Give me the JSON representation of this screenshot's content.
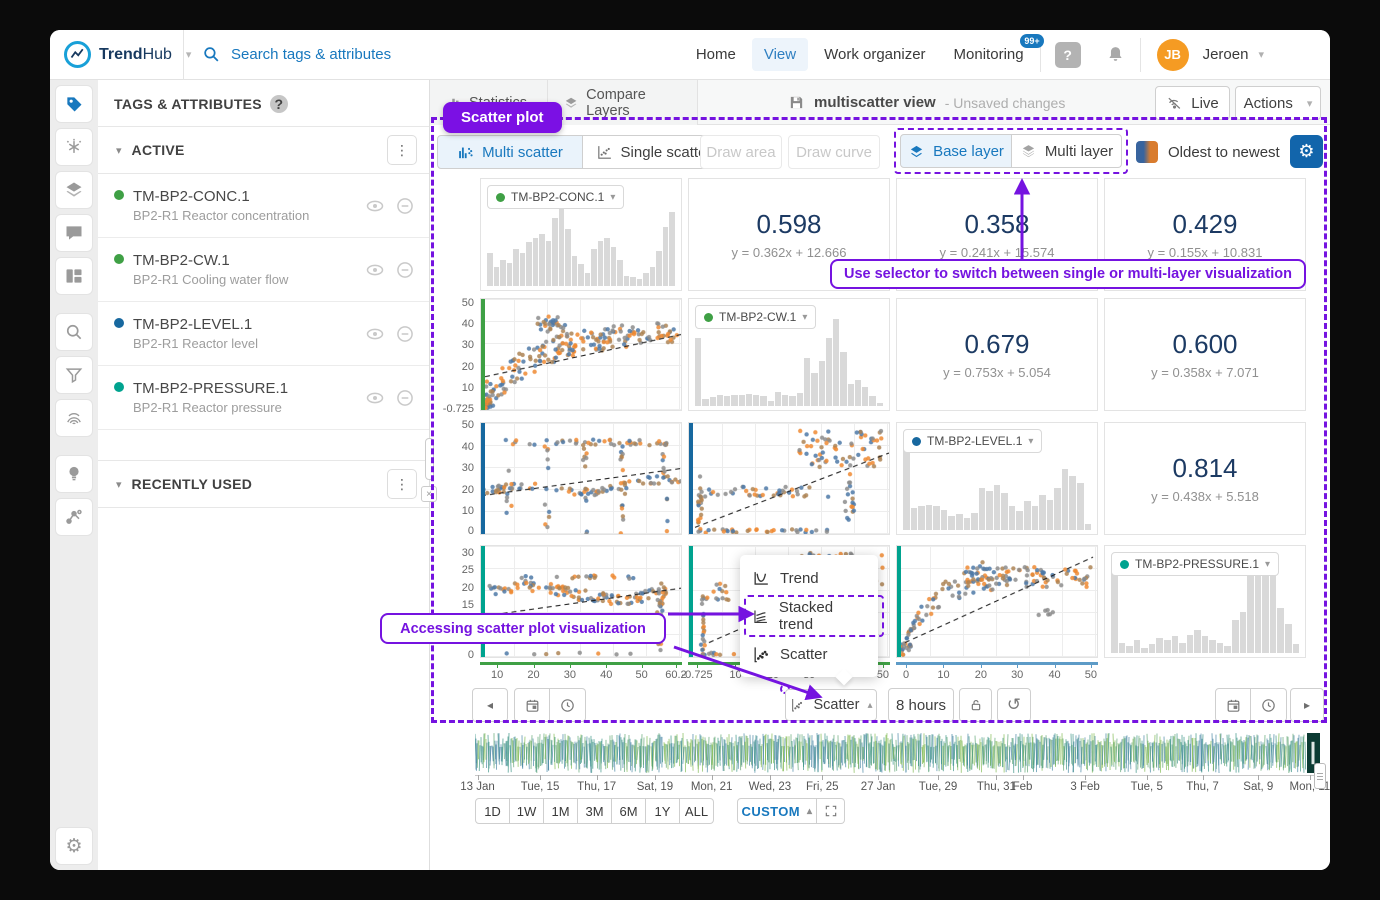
{
  "app": {
    "accent_blue": "#1878be",
    "accent_purple": "#7513e0",
    "navy": "#1c3a63"
  },
  "navbar": {
    "brand_bold": "Trend",
    "brand_light": "Hub",
    "search_placeholder": "Search tags & attributes",
    "nav_items": [
      {
        "label": "Home"
      },
      {
        "label": "View"
      },
      {
        "label": "Work organizer"
      },
      {
        "label": "Monitoring"
      }
    ],
    "monitoring_badge": "99+",
    "help_label": "?",
    "user_initials": "JB",
    "user_name": "Jeroen"
  },
  "sidebar": {
    "title": "TAGS & ATTRIBUTES",
    "active_label": "ACTIVE",
    "recent_label": "RECENTLY USED",
    "items": [
      {
        "name": "TM-BP2-CONC.1",
        "desc": "BP2-R1 Reactor concentration",
        "color": "#3fa045"
      },
      {
        "name": "TM-BP2-CW.1",
        "desc": "BP2-R1 Cooling water flow",
        "color": "#3fa045"
      },
      {
        "name": "TM-BP2-LEVEL.1",
        "desc": "BP2-R1 Reactor level",
        "color": "#17689f"
      },
      {
        "name": "TM-BP2-PRESSURE.1",
        "desc": "BP2-R1 Reactor pressure",
        "color": "#00a38f"
      }
    ]
  },
  "tabs": {
    "statistics": "Statistics",
    "compare_layers": "Compare Layers"
  },
  "view_header": {
    "title": "multiscatter view",
    "status": "- Unsaved changes",
    "live": "Live",
    "actions": "Actions"
  },
  "toolbar": {
    "multi_scatter": "Multi scatter",
    "single_scatter": "Single scatter",
    "draw_area": "Draw area",
    "draw_curve": "Draw curve",
    "base_layer": "Base layer",
    "multi_layer": "Multi layer",
    "sort_order": "Oldest to newest"
  },
  "annotations": {
    "badge": "Scatter plot",
    "selector_note": "Use selector to switch between single or multi-layer visualization",
    "access_note": "Accessing scatter plot visualization"
  },
  "viz_menu": {
    "trend": "Trend",
    "stacked_trend": "Stacked trend",
    "scatter": "Scatter"
  },
  "bottom_bar": {
    "viz_selected": "Scatter",
    "duration": "8 hours"
  },
  "timeline_dates": [
    "13 Jan",
    "Tue, 15",
    "Thu, 17",
    "Sat, 19",
    "Mon, 21",
    "Wed, 23",
    "Fri, 25",
    "27 Jan",
    "Tue, 29",
    "Thu, 31",
    "Feb",
    "3 Feb",
    "Tue, 5",
    "Thu, 7",
    "Sat, 9",
    "Mon, 11"
  ],
  "range_buttons": [
    "1D",
    "1W",
    "1M",
    "3M",
    "6M",
    "1Y",
    "ALL"
  ],
  "custom_label": "CUSTOM",
  "chart_data": {
    "type": "scatter-matrix",
    "tags": [
      "TM-BP2-CONC.1",
      "TM-BP2-CW.1",
      "TM-BP2-LEVEL.1",
      "TM-BP2-PRESSURE.1"
    ],
    "tag_colors": [
      "#3fa045",
      "#3fa045",
      "#17689f",
      "#00a38f"
    ],
    "point_colors": [
      "#ef8a33",
      "#4e79a7",
      "#8c8c8c",
      "#ad8455"
    ],
    "hist_color": "#d9d9d9",
    "layout": {
      "grid": "4x4",
      "diagonal": "histograms",
      "upper_triangle": "correlation values",
      "lower_triangle": "scatter plots"
    },
    "correlations": [
      {
        "y": "TM-BP2-CONC.1",
        "x": "TM-BP2-CW.1",
        "r": 0.598,
        "fit": "y = 0.362x + 12.666"
      },
      {
        "y": "TM-BP2-CONC.1",
        "x": "TM-BP2-LEVEL.1",
        "r": 0.358,
        "fit": "y = 0.241x + 15.574"
      },
      {
        "y": "TM-BP2-CONC.1",
        "x": "TM-BP2-PRESSURE.1",
        "r": 0.429,
        "fit": "y = 0.155x + 10.831"
      },
      {
        "y": "TM-BP2-CW.1",
        "x": "TM-BP2-LEVEL.1",
        "r": 0.679,
        "fit": "y = 0.753x + 5.054"
      },
      {
        "y": "TM-BP2-CW.1",
        "x": "TM-BP2-PRESSURE.1",
        "r": 0.6,
        "fit": "y = 0.358x + 7.071"
      },
      {
        "y": "TM-BP2-LEVEL.1",
        "x": "TM-BP2-PRESSURE.1",
        "r": 0.814,
        "fit": "y = 0.438x + 5.518"
      }
    ],
    "histograms": {
      "conc": [
        0.38,
        0.22,
        0.3,
        0.26,
        0.42,
        0.38,
        0.5,
        0.55,
        0.6,
        0.52,
        0.78,
        1.0,
        0.65,
        0.35,
        0.25,
        0.15,
        0.42,
        0.52,
        0.55,
        0.45,
        0.3,
        0.12,
        0.1,
        0.08,
        0.15,
        0.22,
        0.4,
        0.68,
        0.85
      ],
      "cw": [
        0.78,
        0.08,
        0.1,
        0.13,
        0.12,
        0.13,
        0.13,
        0.14,
        0.13,
        0.12,
        0.06,
        0.16,
        0.13,
        0.12,
        0.15,
        0.55,
        0.38,
        0.52,
        0.78,
        1.0,
        0.62,
        0.25,
        0.3,
        0.22,
        0.12,
        0.03
      ],
      "level": [
        1.0,
        0.25,
        0.27,
        0.29,
        0.27,
        0.23,
        0.16,
        0.18,
        0.14,
        0.2,
        0.48,
        0.45,
        0.52,
        0.42,
        0.27,
        0.22,
        0.33,
        0.28,
        0.4,
        0.35,
        0.48,
        0.7,
        0.62,
        0.54,
        0.07
      ],
      "pressure": [
        0.95,
        0.12,
        0.08,
        0.15,
        0.06,
        0.1,
        0.17,
        0.15,
        0.19,
        0.12,
        0.21,
        0.26,
        0.19,
        0.15,
        0.12,
        0.08,
        0.38,
        0.47,
        0.95,
        1.0,
        0.97,
        1.0,
        0.52,
        0.33,
        0.1
      ]
    },
    "cells": [
      {
        "r": 0,
        "c": 0,
        "type": "hist",
        "tag": "TM-BP2-CONC.1",
        "dot": "#3fa045",
        "bars": "conc"
      },
      {
        "r": 0,
        "c": 1,
        "type": "corr",
        "value": "0.598",
        "fit": "y = 0.362x + 12.666"
      },
      {
        "r": 0,
        "c": 2,
        "type": "corr",
        "value": "0.358",
        "fit": "y = 0.241x + 15.574"
      },
      {
        "r": 0,
        "c": 3,
        "type": "corr",
        "value": "0.429",
        "fit": "y = 0.155x + 10.831"
      },
      {
        "r": 1,
        "c": 0,
        "type": "scatter",
        "pattern": "sat_rise",
        "strip": "#3fa045",
        "trend": [
          0.02,
          0.7,
          1.0,
          0.32
        ],
        "yticks": [
          {
            "t": "50",
            "p": 0.04
          },
          {
            "t": "40",
            "p": 0.227
          },
          {
            "t": "30",
            "p": 0.417
          },
          {
            "t": "20",
            "p": 0.607
          },
          {
            "t": "10",
            "p": 0.797
          },
          {
            "t": "-0.725",
            "p": 0.98
          }
        ]
      },
      {
        "r": 1,
        "c": 1,
        "type": "hist",
        "tag": "TM-BP2-CW.1",
        "dot": "#3fa045",
        "bars": "cw"
      },
      {
        "r": 1,
        "c": 2,
        "type": "corr",
        "value": "0.679",
        "fit": "y = 0.753x + 5.054"
      },
      {
        "r": 1,
        "c": 3,
        "type": "corr",
        "value": "0.600",
        "fit": "y = 0.358x + 7.071"
      },
      {
        "r": 2,
        "c": 0,
        "type": "scatter",
        "pattern": "plateau_cols",
        "strip": "#17689f",
        "trend": [
          0.0,
          0.655,
          1.0,
          0.41
        ],
        "yticks": [
          {
            "t": "50",
            "p": 0.03
          },
          {
            "t": "40",
            "p": 0.22
          },
          {
            "t": "30",
            "p": 0.41
          },
          {
            "t": "20",
            "p": 0.6
          },
          {
            "t": "10",
            "p": 0.79
          },
          {
            "t": "0",
            "p": 0.965
          }
        ]
      },
      {
        "r": 2,
        "c": 1,
        "type": "scatter",
        "pattern": "l_cluster",
        "strip": "#17689f",
        "trend": [
          0.03,
          0.94,
          1.0,
          0.27
        ]
      },
      {
        "r": 2,
        "c": 2,
        "type": "hist",
        "tag": "TM-BP2-LEVEL.1",
        "dot": "#17689f",
        "bars": "level"
      },
      {
        "r": 2,
        "c": 3,
        "type": "corr",
        "value": "0.814",
        "fit": "y = 0.438x + 5.518"
      },
      {
        "r": 3,
        "c": 0,
        "type": "scatter",
        "pattern": "band_drop",
        "strip": "#00a38f",
        "trend": [
          0.02,
          0.63,
          1.0,
          0.38
        ],
        "yticks": [
          {
            "t": "30",
            "p": 0.07
          },
          {
            "t": "25",
            "p": 0.225
          },
          {
            "t": "20",
            "p": 0.38
          },
          {
            "t": "15",
            "p": 0.535
          },
          {
            "t": "10",
            "p": 0.69
          },
          {
            "t": "5",
            "p": 0.845
          },
          {
            "t": "0",
            "p": 0.97
          }
        ],
        "xaxis": {
          "color": "#3fa045",
          "ticks": [
            {
              "t": "10",
              "p": 0.085
            },
            {
              "t": "20",
              "p": 0.265
            },
            {
              "t": "30",
              "p": 0.445
            },
            {
              "t": "40",
              "p": 0.625
            },
            {
              "t": "50",
              "p": 0.8
            },
            {
              "t": "60.2",
              "p": 0.97
            }
          ]
        }
      },
      {
        "r": 3,
        "c": 1,
        "type": "scatter",
        "pattern": "l_cluster2",
        "strip": "#00a38f",
        "trend": [
          0.1,
          0.87,
          0.82,
          0.3
        ],
        "xaxis": {
          "color": "#3fa045",
          "ticks": [
            {
              "t": "-0.725",
              "p": 0.045
            },
            {
              "t": "10",
              "p": 0.235
            },
            {
              "t": "20",
              "p": 0.42
            },
            {
              "t": "30",
              "p": 0.6
            },
            {
              "t": "40",
              "p": 0.785
            },
            {
              "t": "50",
              "p": 0.965
            }
          ]
        }
      },
      {
        "r": 3,
        "c": 2,
        "type": "scatter",
        "pattern": "rise_flat",
        "strip": "#00a38f",
        "trend": [
          0.04,
          0.87,
          0.98,
          0.1
        ],
        "xaxis": {
          "color": "#5d9bc7",
          "ticks": [
            {
              "t": "0",
              "p": 0.05
            },
            {
              "t": "10",
              "p": 0.235
            },
            {
              "t": "20",
              "p": 0.42
            },
            {
              "t": "30",
              "p": 0.6
            },
            {
              "t": "40",
              "p": 0.785
            },
            {
              "t": "50",
              "p": 0.965
            }
          ]
        }
      },
      {
        "r": 3,
        "c": 3,
        "type": "hist",
        "tag": "TM-BP2-PRESSURE.1",
        "dot": "#00a38f",
        "bars": "pressure"
      }
    ],
    "timeline": {
      "signal_colors": [
        "#2f8c7d",
        "#7ab648",
        "#3c7f9e",
        "#55a06b"
      ]
    }
  }
}
